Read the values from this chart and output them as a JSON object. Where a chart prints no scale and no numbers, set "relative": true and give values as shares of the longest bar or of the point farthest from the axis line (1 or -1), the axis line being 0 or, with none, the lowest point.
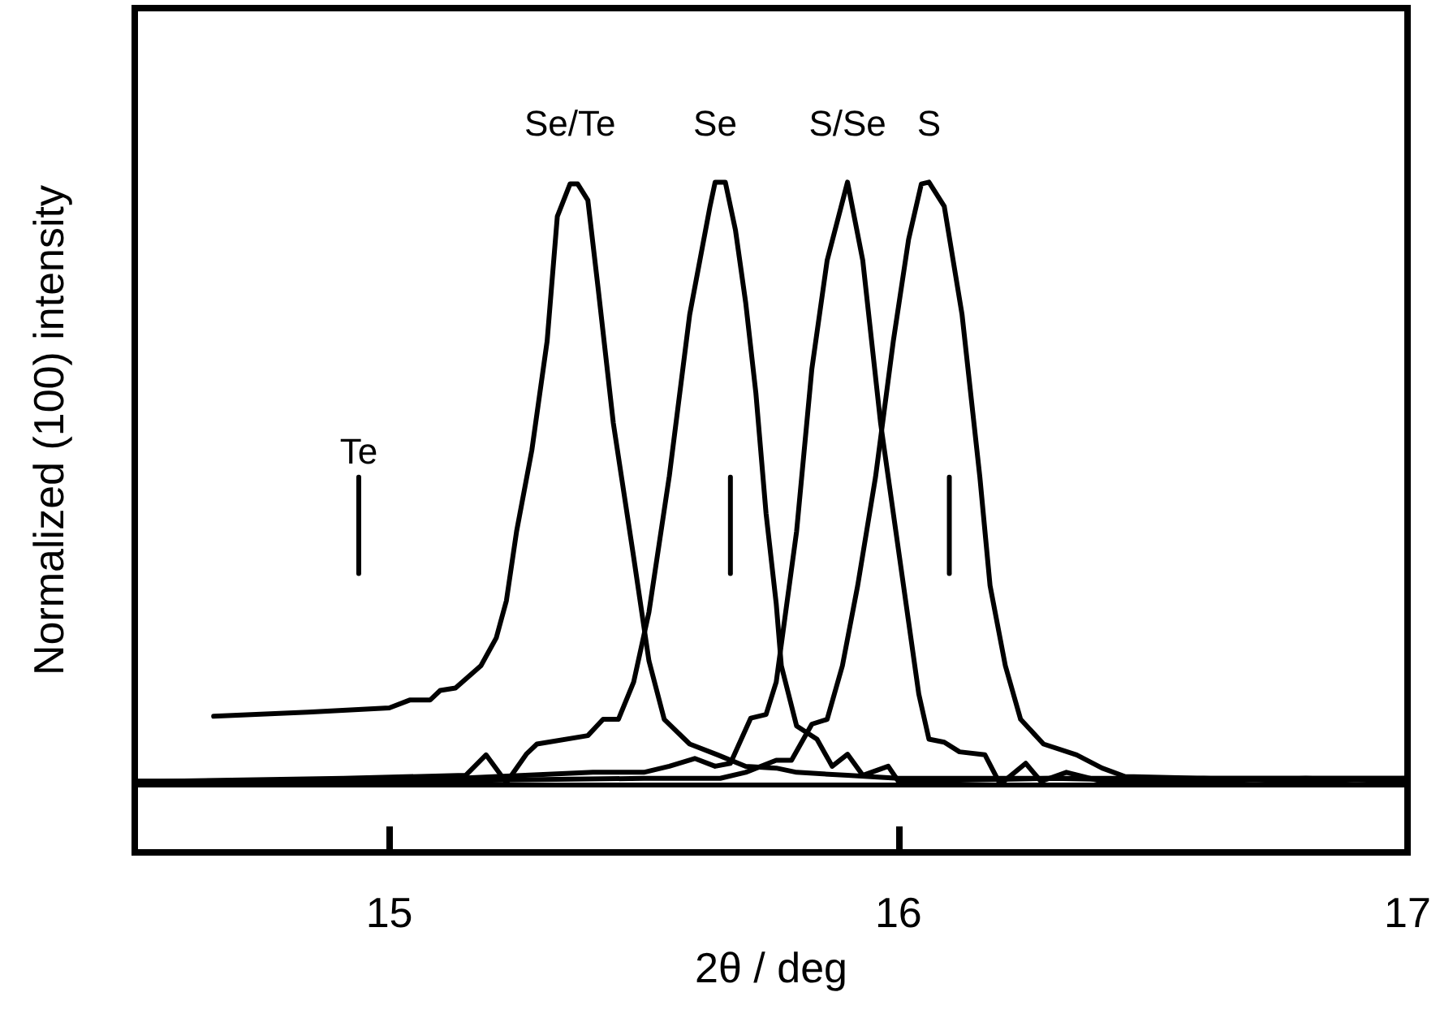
{
  "chart_data": {
    "type": "line",
    "xlabel": "2θ / deg",
    "ylabel": "Normalized (100) intensity",
    "relative": true,
    "xlim": [
      14.5,
      17
    ],
    "xticks": [
      15,
      16,
      17
    ],
    "grid": false,
    "legend": false,
    "marker": "none",
    "line_style": "solid",
    "series": [
      {
        "type": "line",
        "name": "Se/Te",
        "color": "#000000",
        "x": [
          14.655,
          14.84,
          15.0,
          15.04,
          15.08,
          15.1,
          15.13,
          15.18,
          15.21,
          15.23,
          15.25,
          15.28,
          15.31,
          15.33,
          15.355,
          15.37,
          15.39,
          15.41,
          15.44,
          15.48,
          15.51,
          15.54,
          15.59,
          15.645,
          15.7,
          15.76,
          15.8,
          15.9,
          16.0,
          16.2,
          16.4,
          16.6,
          16.8,
          17.0
        ],
        "values": [
          0.113,
          0.12,
          0.127,
          0.14,
          0.14,
          0.156,
          0.16,
          0.197,
          0.243,
          0.305,
          0.42,
          0.555,
          0.736,
          0.943,
          0.997,
          0.997,
          0.97,
          0.825,
          0.6,
          0.377,
          0.205,
          0.108,
          0.067,
          0.049,
          0.03,
          0.027,
          0.02,
          0.015,
          0.01,
          0.01,
          0.01,
          0.01,
          0.01,
          0.01
        ]
      },
      {
        "type": "line",
        "name": "Se",
        "color": "#000000",
        "x": [
          14.5,
          14.55,
          14.91,
          15.15,
          15.19,
          15.23,
          15.27,
          15.29,
          15.39,
          15.42,
          15.45,
          15.48,
          15.51,
          15.55,
          15.59,
          15.63,
          15.64,
          15.66,
          15.68,
          15.7,
          15.72,
          15.74,
          15.76,
          15.77,
          15.8,
          15.84,
          15.87,
          15.9,
          15.93,
          15.98,
          16.0,
          16.3,
          16.6,
          16.8,
          17.0
        ],
        "values": [
          0.005,
          0.005,
          0.01,
          0.015,
          0.049,
          0.003,
          0.051,
          0.067,
          0.081,
          0.108,
          0.108,
          0.17,
          0.286,
          0.512,
          0.78,
          0.96,
          1.0,
          1.0,
          0.92,
          0.8,
          0.65,
          0.45,
          0.3,
          0.197,
          0.097,
          0.075,
          0.03,
          0.05,
          0.015,
          0.03,
          0.005,
          0.01,
          0.005,
          0.01,
          0.005
        ]
      },
      {
        "type": "line",
        "name": "S/Se",
        "color": "#000000",
        "x": [
          14.5,
          15.0,
          15.4,
          15.5,
          15.55,
          15.6,
          15.64,
          15.67,
          15.71,
          15.74,
          15.76,
          15.8,
          15.83,
          15.86,
          15.9,
          15.93,
          15.965,
          16.01,
          16.04,
          16.06,
          16.09,
          16.12,
          16.17,
          16.2,
          16.25,
          16.28,
          16.33,
          16.4,
          16.6,
          16.8,
          17.0
        ],
        "values": [
          0.005,
          0.005,
          0.02,
          0.02,
          0.03,
          0.043,
          0.03,
          0.035,
          0.11,
          0.116,
          0.17,
          0.42,
          0.69,
          0.87,
          1.0,
          0.87,
          0.6,
          0.33,
          0.15,
          0.075,
          0.07,
          0.054,
          0.049,
          0.0,
          0.035,
          0.005,
          0.02,
          0.005,
          0.01,
          0.005,
          0.01
        ]
      },
      {
        "type": "line",
        "name": "S",
        "color": "#000000",
        "x": [
          14.5,
          15.0,
          15.5,
          15.65,
          15.7,
          15.76,
          15.79,
          15.83,
          15.86,
          15.89,
          15.92,
          15.955,
          15.99,
          16.02,
          16.045,
          16.06,
          16.09,
          16.125,
          16.16,
          16.18,
          16.21,
          16.24,
          16.285,
          16.35,
          16.4,
          16.445,
          16.6,
          16.8,
          17.0
        ],
        "values": [
          0.005,
          0.005,
          0.01,
          0.01,
          0.02,
          0.04,
          0.04,
          0.1,
          0.108,
          0.197,
          0.33,
          0.51,
          0.736,
          0.905,
          0.997,
          1.0,
          0.96,
          0.78,
          0.51,
          0.33,
          0.197,
          0.108,
          0.067,
          0.049,
          0.027,
          0.013,
          0.01,
          0.01,
          0.01
        ]
      },
      {
        "type": "line",
        "name": "Te",
        "color": "#000000",
        "x": [
          14.94,
          14.94
        ],
        "values": [
          0.35,
          0.51
        ]
      },
      {
        "type": "line",
        "color": "#000000",
        "x": [
          15.67,
          15.67
        ],
        "values": [
          0.35,
          0.51
        ]
      },
      {
        "type": "line",
        "color": "#000000",
        "x": [
          16.1,
          16.1
        ],
        "values": [
          0.35,
          0.51
        ]
      }
    ],
    "ref_lines": [
      {
        "axis": "y",
        "value": 0,
        "label": null,
        "color": "#000000",
        "line_style": "solid"
      }
    ]
  }
}
